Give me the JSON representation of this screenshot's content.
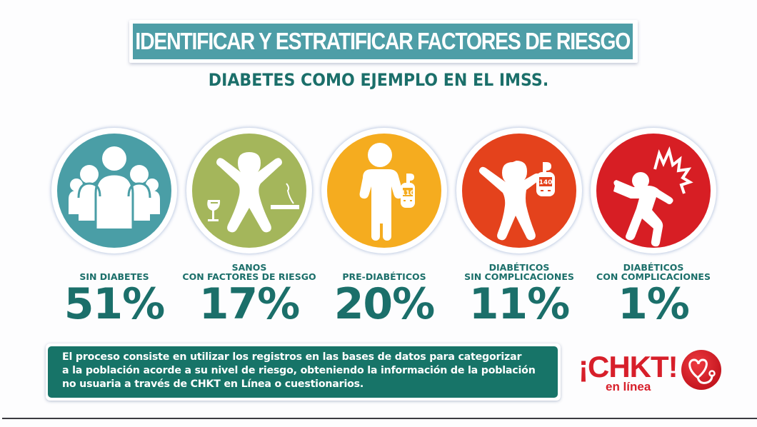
{
  "header": {
    "title": "IDENTIFICAR Y ESTRATIFICAR FACTORES DE RIESGO",
    "subtitle": "DIABETES COMO EJEMPLO EN EL IMSS."
  },
  "categories": [
    {
      "label_lines": [
        "SIN DIABETES"
      ],
      "value": "51%",
      "icon": "group-of-people-icon",
      "color": "#4a9ea6"
    },
    {
      "label_lines": [
        "SANOS",
        "CON FACTORES DE RIESGO"
      ],
      "value": "17%",
      "icon": "person-with-wine-and-cigarette-icon",
      "color": "#a4b65b"
    },
    {
      "label_lines": [
        "PRE-DIABÉTICOS"
      ],
      "value": "20%",
      "icon": "person-with-glucometer-icon",
      "color": "#f5ac1f",
      "meter_reading": "110"
    },
    {
      "label_lines": [
        "DIABÉTICOS",
        "SIN COMPLICACIONES"
      ],
      "value": "11%",
      "icon": "cheering-person-with-glucometer-icon",
      "color": "#e4421c",
      "meter_reading": "140"
    },
    {
      "label_lines": [
        "DIABÉTICOS",
        "CON COMPLICACIONES"
      ],
      "value": "1%",
      "icon": "falling-person-with-pain-burst-icon",
      "color": "#d71e24"
    }
  ],
  "note": {
    "lines": [
      "El proceso consiste en utilizar los registros en las bases de datos para categorizar",
      "a la población acorde a su nivel de riesgo, obteniendo la información de la población",
      "no usuaria a través de CHKT en Línea o cuestionarios."
    ]
  },
  "logo": {
    "wordmark": "¡CHKT!",
    "tagline": "en línea",
    "icon": "heart-stethoscope-icon",
    "color": "#d71f2a"
  },
  "colors": {
    "header_bg": "#4e9ea7",
    "text_green": "#1b6f6a",
    "note_bg": "#177468"
  }
}
